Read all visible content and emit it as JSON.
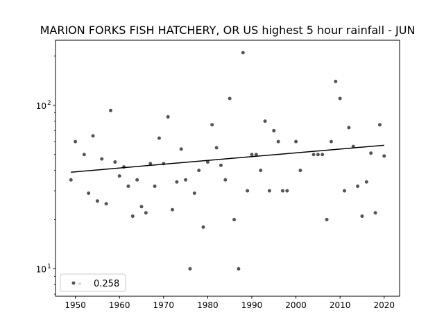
{
  "chart_data": {
    "type": "scatter",
    "title": "MARION FORKS FISH HATCHERY, OR US highest 5 hour rainfall - JUN",
    "xlabel": "",
    "ylabel": "",
    "y_scale": "log",
    "xlim": [
      1945.5,
      2023.5
    ],
    "ylim": [
      6.8,
      250
    ],
    "x_ticks": [
      1950,
      1960,
      1970,
      1980,
      1990,
      2000,
      2010,
      2020
    ],
    "x_tick_labels": [
      "1950",
      "1960",
      "1970",
      "1980",
      "1990",
      "2000",
      "2010",
      "2020"
    ],
    "y_ticks": [
      10,
      100
    ],
    "y_tick_labels_base": [
      "10",
      "10"
    ],
    "y_tick_labels_exp": [
      "1",
      "2"
    ],
    "grid": false,
    "legend_position": "lower-left",
    "legend_label": "0.258",
    "point_color": "#555555",
    "trend_color": "#000000",
    "series": [
      {
        "points": [
          [
            1949,
            35
          ],
          [
            1950,
            60
          ],
          [
            1952,
            50
          ],
          [
            1953,
            29
          ],
          [
            1954,
            65
          ],
          [
            1955,
            26
          ],
          [
            1956,
            47
          ],
          [
            1957,
            25
          ],
          [
            1958,
            93
          ],
          [
            1959,
            45
          ],
          [
            1960,
            37
          ],
          [
            1961,
            42
          ],
          [
            1962,
            32
          ],
          [
            1963,
            21
          ],
          [
            1964,
            35
          ],
          [
            1965,
            24
          ],
          [
            1966,
            22
          ],
          [
            1967,
            44
          ],
          [
            1968,
            32
          ],
          [
            1969,
            63
          ],
          [
            1970,
            44
          ],
          [
            1971,
            85
          ],
          [
            1972,
            23
          ],
          [
            1973,
            34
          ],
          [
            1974,
            54
          ],
          [
            1975,
            35
          ],
          [
            1976,
            10
          ],
          [
            1977,
            29
          ],
          [
            1978,
            40
          ],
          [
            1979,
            18
          ],
          [
            1980,
            45
          ],
          [
            1981,
            76
          ],
          [
            1982,
            55
          ],
          [
            1983,
            43
          ],
          [
            1984,
            35
          ],
          [
            1985,
            110
          ],
          [
            1986,
            20
          ],
          [
            1987,
            10
          ],
          [
            1988,
            210
          ],
          [
            1989,
            30
          ],
          [
            1990,
            50
          ],
          [
            1991,
            50
          ],
          [
            1992,
            40
          ],
          [
            1993,
            80
          ],
          [
            1994,
            30
          ],
          [
            1995,
            70
          ],
          [
            1996,
            60
          ],
          [
            1997,
            30
          ],
          [
            1998,
            30
          ],
          [
            2000,
            60
          ],
          [
            2001,
            40
          ],
          [
            2004,
            50
          ],
          [
            2005,
            50
          ],
          [
            2006,
            50
          ],
          [
            2007,
            20
          ],
          [
            2008,
            60
          ],
          [
            2009,
            140
          ],
          [
            2010,
            110
          ],
          [
            2011,
            30
          ],
          [
            2012,
            73
          ],
          [
            2013,
            56
          ],
          [
            2014,
            32
          ],
          [
            2015,
            21
          ],
          [
            2016,
            34
          ],
          [
            2017,
            51
          ],
          [
            2018,
            22
          ],
          [
            2019,
            76
          ],
          [
            2020,
            49
          ]
        ]
      }
    ],
    "trend_line": {
      "x": [
        1949,
        2020
      ],
      "y": [
        39,
        57
      ]
    }
  }
}
